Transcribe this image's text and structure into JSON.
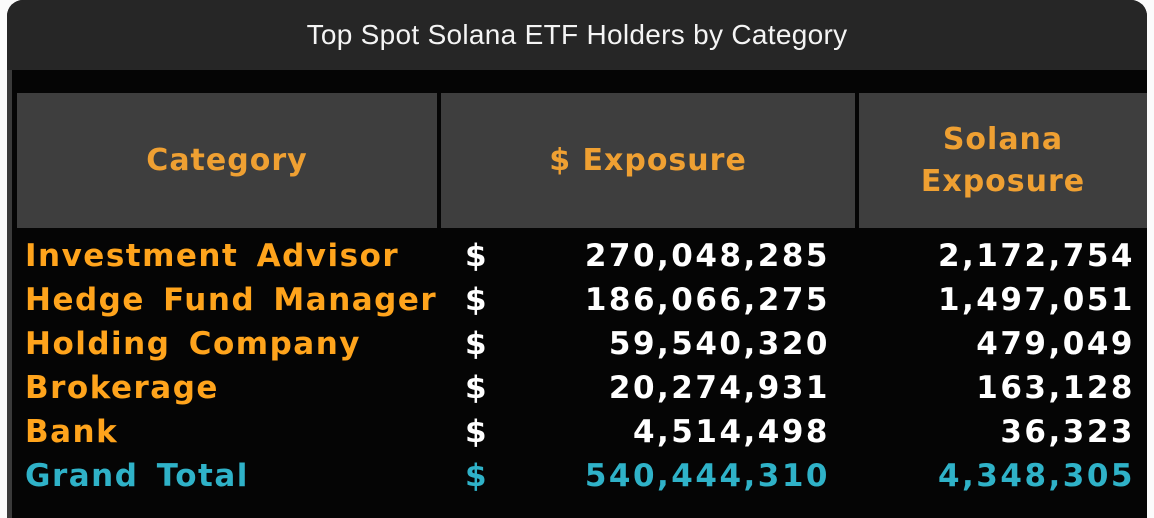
{
  "card": {
    "title": "Top Spot Solana ETF Holders by Category"
  },
  "colors": {
    "page_bg": "#fbfbfb",
    "card_bg": "#0a0a0a",
    "title_band_bg": "#262626",
    "title_text": "#f4f4f4",
    "header_bg": "#3e3e3e",
    "header_text": "#efa032",
    "row_label_orange": "#ffa41c",
    "value_white": "#ffffff",
    "grand_total_cyan": "#2fb2c8"
  },
  "table": {
    "headers": [
      {
        "label": "Category"
      },
      {
        "label": "$ Exposure"
      },
      {
        "label": "Solana\nExposure"
      }
    ],
    "rows": [
      {
        "category": "Investment Advisor",
        "currency": "$",
        "usd_exposure": "270,048,285",
        "sol_exposure": "2,172,754",
        "is_total": false
      },
      {
        "category": "Hedge Fund Manager",
        "currency": "$",
        "usd_exposure": "186,066,275",
        "sol_exposure": "1,497,051",
        "is_total": false
      },
      {
        "category": "Holding Company",
        "currency": "$",
        "usd_exposure": "59,540,320",
        "sol_exposure": "479,049",
        "is_total": false
      },
      {
        "category": "Brokerage",
        "currency": "$",
        "usd_exposure": "20,274,931",
        "sol_exposure": "163,128",
        "is_total": false
      },
      {
        "category": "Bank",
        "currency": "$",
        "usd_exposure": "4,514,498",
        "sol_exposure": "36,323",
        "is_total": false
      },
      {
        "category": "Grand Total",
        "currency": "$",
        "usd_exposure": "540,444,310",
        "sol_exposure": "4,348,305",
        "is_total": true
      }
    ]
  },
  "chart_data": {
    "type": "table",
    "title": "Top Spot Solana ETF Holders by Category",
    "columns": [
      "Category",
      "$ Exposure",
      "Solana Exposure"
    ],
    "rows": [
      [
        "Investment Advisor",
        270048285,
        2172754
      ],
      [
        "Hedge Fund Manager",
        186066275,
        1497051
      ],
      [
        "Holding Company",
        59540320,
        479049
      ],
      [
        "Brokerage",
        20274931,
        163128
      ],
      [
        "Bank",
        4514498,
        36323
      ],
      [
        "Grand Total",
        540444310,
        4348305
      ]
    ]
  }
}
